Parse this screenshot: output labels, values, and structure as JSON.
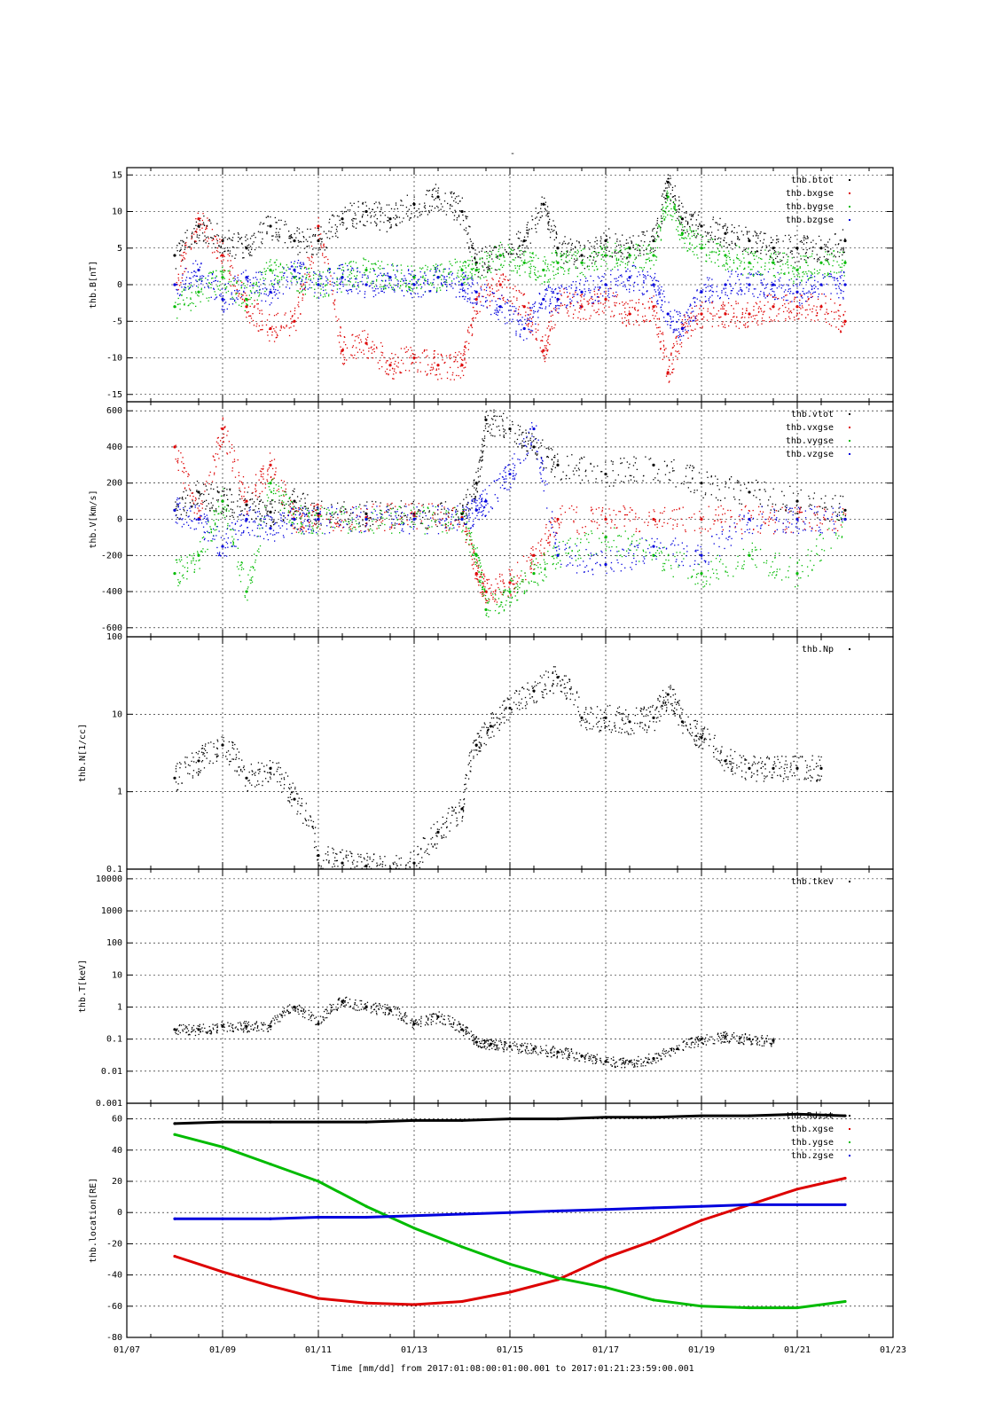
{
  "figure": {
    "title": "-",
    "xlabel": "Time [mm/dd]  from 2017:01:08:00:01:00.001  to  2017:01:21:23:59:00.001",
    "x_ticks": [
      "01/07",
      "01/09",
      "01/11",
      "01/13",
      "01/15",
      "01/17",
      "01/19",
      "01/21",
      "01/23"
    ]
  },
  "chart_data": [
    {
      "type": "scatter",
      "panel": "magnetic-field",
      "ylabel": "thb.B[nT]",
      "x_unit": "day of January 2017",
      "xlim": [
        7,
        23
      ],
      "ylim": [
        -16,
        16
      ],
      "y_ticks": [
        "15",
        "10",
        "5",
        "0",
        "-5",
        "-10",
        "-15"
      ],
      "y_tick_values": [
        15,
        10,
        5,
        0,
        -5,
        -10,
        -15
      ],
      "grid": true,
      "legend_position": "top-right",
      "series": [
        {
          "name": "thb.btot",
          "color": "#000000",
          "x": [
            8.0,
            8.5,
            9.0,
            9.5,
            10.0,
            10.5,
            11.0,
            11.5,
            12.0,
            12.5,
            13.0,
            13.5,
            14.0,
            14.3,
            14.8,
            15.3,
            15.7,
            16.0,
            16.5,
            17.0,
            17.5,
            18.0,
            18.3,
            18.6,
            19.0,
            19.5,
            20.0,
            20.5,
            21.0,
            21.5,
            22.0
          ],
          "y": [
            4,
            8,
            6,
            5,
            8,
            6,
            6,
            9,
            10,
            9,
            11,
            12,
            10,
            3,
            4,
            6,
            11,
            5,
            4,
            6,
            5,
            6,
            14,
            9,
            8,
            7,
            6,
            5,
            5,
            5,
            6
          ]
        },
        {
          "name": "thb.bxgse",
          "color": "#dd0000",
          "x": [
            8.0,
            8.5,
            9.0,
            9.5,
            10.0,
            10.5,
            11.0,
            11.5,
            12.0,
            12.5,
            13.0,
            13.5,
            14.0,
            14.3,
            14.8,
            15.3,
            15.7,
            16.0,
            16.5,
            17.0,
            17.5,
            18.0,
            18.3,
            18.6,
            19.0,
            19.5,
            20.0,
            20.5,
            21.0,
            21.5,
            22.0
          ],
          "y": [
            0,
            9,
            4,
            -3,
            -6,
            -5,
            8,
            -9,
            -8,
            -11,
            -10,
            -11,
            -11,
            -2,
            0,
            -3,
            -9,
            -2,
            -3,
            -2,
            -4,
            -3,
            -12,
            -6,
            -4,
            -4,
            -4,
            -3,
            -3,
            -3,
            -5
          ]
        },
        {
          "name": "thb.bygse",
          "color": "#00bb00",
          "x": [
            8.0,
            8.5,
            9.0,
            9.5,
            10.0,
            10.5,
            11.0,
            11.5,
            12.0,
            12.5,
            13.0,
            13.5,
            14.0,
            14.3,
            14.8,
            15.3,
            15.7,
            16.0,
            16.5,
            17.0,
            17.5,
            18.0,
            18.3,
            18.6,
            19.0,
            19.5,
            20.0,
            20.5,
            21.0,
            21.5,
            22.0
          ],
          "y": [
            -3,
            -1,
            1,
            -2,
            2,
            1,
            0,
            1,
            2,
            1,
            1,
            1,
            2,
            2,
            4,
            3,
            2,
            3,
            3,
            4,
            4,
            4,
            12,
            7,
            5,
            4,
            3,
            3,
            2,
            3,
            3
          ]
        },
        {
          "name": "thb.bzgse",
          "color": "#0000dd",
          "x": [
            8.0,
            8.5,
            9.0,
            9.5,
            10.0,
            10.5,
            11.0,
            11.5,
            12.0,
            12.5,
            13.0,
            13.5,
            14.0,
            14.3,
            14.8,
            15.3,
            15.7,
            16.0,
            16.5,
            17.0,
            17.5,
            18.0,
            18.3,
            18.6,
            19.0,
            19.5,
            20.0,
            20.5,
            21.0,
            21.5,
            22.0
          ],
          "y": [
            0,
            2,
            -2,
            1,
            -1,
            2,
            0,
            1,
            0,
            1,
            0,
            1,
            0,
            -1,
            -3,
            -6,
            -2,
            -2,
            -1,
            0,
            1,
            0,
            -4,
            -6,
            -1,
            0,
            0,
            0,
            -1,
            0,
            0
          ]
        }
      ]
    },
    {
      "type": "scatter",
      "panel": "velocity",
      "ylabel": "thb.V[km/s]",
      "xlim": [
        7,
        23
      ],
      "ylim": [
        -650,
        650
      ],
      "y_ticks": [
        "600",
        "400",
        "200",
        "0",
        "-200",
        "-400",
        "-600"
      ],
      "y_tick_values": [
        600,
        400,
        200,
        0,
        -200,
        -400,
        -600
      ],
      "grid": true,
      "legend_position": "top-right",
      "series": [
        {
          "name": "thb.vtot",
          "color": "#000000",
          "x": [
            8.0,
            8.5,
            9.0,
            9.5,
            10.0,
            10.5,
            11.0,
            12.0,
            13.0,
            14.0,
            14.3,
            14.5,
            15.0,
            15.5,
            16.0,
            17.0,
            18.0,
            19.0,
            20.0,
            21.0,
            22.0
          ],
          "y": [
            50,
            150,
            100,
            80,
            40,
            100,
            30,
            30,
            30,
            30,
            200,
            550,
            500,
            400,
            300,
            250,
            300,
            200,
            150,
            100,
            50
          ]
        },
        {
          "name": "thb.vxgse",
          "color": "#dd0000",
          "x": [
            8.0,
            8.5,
            9.0,
            9.5,
            10.0,
            10.5,
            11.0,
            12.0,
            13.0,
            14.0,
            14.3,
            14.5,
            15.0,
            15.5,
            16.0,
            17.0,
            18.0,
            19.0,
            20.0,
            21.0,
            22.0
          ],
          "y": [
            400,
            0,
            500,
            100,
            300,
            0,
            20,
            10,
            20,
            10,
            -300,
            -400,
            -350,
            -200,
            0,
            0,
            0,
            0,
            0,
            0,
            0
          ]
        },
        {
          "name": "thb.vygse",
          "color": "#00bb00",
          "x": [
            8.0,
            8.5,
            9.0,
            9.5,
            10.0,
            10.5,
            11.0,
            12.0,
            13.0,
            14.0,
            14.3,
            14.5,
            15.0,
            15.5,
            16.0,
            17.0,
            18.0,
            19.0,
            20.0,
            21.0,
            22.0
          ],
          "y": [
            -300,
            -200,
            100,
            -400,
            200,
            0,
            0,
            0,
            0,
            0,
            -200,
            -500,
            -400,
            -300,
            -200,
            -100,
            -200,
            -300,
            -200,
            -300,
            0
          ]
        },
        {
          "name": "thb.vzgse",
          "color": "#0000dd",
          "x": [
            8.0,
            8.5,
            9.0,
            9.5,
            10.0,
            10.5,
            11.0,
            12.0,
            13.0,
            14.0,
            14.3,
            14.5,
            15.0,
            15.5,
            16.0,
            17.0,
            18.0,
            19.0,
            20.0,
            21.0,
            22.0
          ],
          "y": [
            50,
            0,
            -150,
            0,
            -50,
            0,
            0,
            0,
            0,
            0,
            50,
            100,
            250,
            500,
            -200,
            -250,
            -150,
            -200,
            0,
            0,
            0
          ]
        }
      ]
    },
    {
      "type": "scatter",
      "panel": "density",
      "ylabel": "thb.N[1/cc]",
      "xlim": [
        7,
        23
      ],
      "ylim": [
        0.1,
        100
      ],
      "log_y": true,
      "y_ticks": [
        "100",
        "10",
        "1",
        "0.1"
      ],
      "y_tick_values": [
        100,
        10,
        1,
        0.1
      ],
      "grid": true,
      "legend_position": "top-right",
      "series": [
        {
          "name": "thb.Np",
          "color": "#000000",
          "x": [
            8.0,
            8.5,
            9.0,
            9.5,
            10.0,
            10.5,
            11.0,
            11.5,
            12.0,
            12.5,
            13.0,
            13.5,
            14.0,
            14.3,
            14.6,
            15.0,
            15.5,
            16.0,
            16.5,
            17.0,
            17.5,
            18.0,
            18.3,
            18.6,
            19.0,
            19.5,
            20.0,
            20.5,
            21.0,
            21.5
          ],
          "y": [
            1.5,
            2.5,
            4,
            1.5,
            2,
            0.8,
            0.15,
            0.12,
            0.11,
            0.1,
            0.12,
            0.3,
            0.6,
            4,
            7,
            12,
            20,
            30,
            9,
            9,
            8,
            9,
            18,
            8,
            5,
            2.5,
            2,
            2,
            2,
            2
          ]
        }
      ]
    },
    {
      "type": "scatter",
      "panel": "temperature",
      "ylabel": "thb.T[keV]",
      "xlim": [
        7,
        23
      ],
      "ylim": [
        0.001,
        20000
      ],
      "log_y": true,
      "y_ticks": [
        "10000",
        "1000",
        "100",
        "10",
        "1",
        "0.1",
        "0.01",
        "0.001"
      ],
      "y_tick_values": [
        10000,
        1000,
        100,
        10,
        1,
        0.1,
        0.01,
        0.001
      ],
      "grid": true,
      "legend_position": "top-right",
      "series": [
        {
          "name": "thb.tkev",
          "color": "#000000",
          "x": [
            8.0,
            8.5,
            9.0,
            9.5,
            10.0,
            10.5,
            11.0,
            11.5,
            12.0,
            12.5,
            13.0,
            13.5,
            14.0,
            14.3,
            14.6,
            15.0,
            15.5,
            16.0,
            16.5,
            17.0,
            17.5,
            18.0,
            18.5,
            19.0,
            19.5,
            20.0,
            20.5
          ],
          "y": [
            0.2,
            0.2,
            0.25,
            0.25,
            0.25,
            1,
            0.3,
            1.5,
            1,
            0.8,
            0.3,
            0.5,
            0.2,
            0.08,
            0.07,
            0.06,
            0.05,
            0.04,
            0.03,
            0.02,
            0.02,
            0.025,
            0.05,
            0.1,
            0.12,
            0.1,
            0.09
          ]
        }
      ]
    },
    {
      "type": "line",
      "panel": "location",
      "ylabel": "thb.location[RE]",
      "xlim": [
        7,
        23
      ],
      "ylim": [
        -80,
        70
      ],
      "y_ticks": [
        "60",
        "40",
        "20",
        "0",
        "-20",
        "-40",
        "-60",
        "-80"
      ],
      "y_tick_values": [
        60,
        40,
        20,
        0,
        -20,
        -40,
        -60,
        -80
      ],
      "grid": true,
      "legend_position": "top-right",
      "series": [
        {
          "name": "thb.Rdist",
          "color": "#000000",
          "x": [
            8,
            9,
            10,
            11,
            12,
            13,
            14,
            15,
            16,
            17,
            18,
            19,
            20,
            21,
            22
          ],
          "y": [
            57,
            58,
            58,
            58,
            58,
            59,
            59,
            60,
            60,
            61,
            61,
            62,
            62,
            63,
            62
          ]
        },
        {
          "name": "thb.xgse",
          "color": "#dd0000",
          "x": [
            8,
            9,
            10,
            11,
            12,
            13,
            14,
            15,
            16,
            17,
            18,
            19,
            20,
            21,
            22
          ],
          "y": [
            -28,
            -38,
            -47,
            -55,
            -58,
            -59,
            -57,
            -51,
            -43,
            -29,
            -18,
            -5,
            5,
            15,
            22
          ]
        },
        {
          "name": "thb.ygse",
          "color": "#00bb00",
          "x": [
            8,
            9,
            10,
            11,
            12,
            13,
            14,
            15,
            16,
            17,
            18,
            19,
            20,
            21,
            22
          ],
          "y": [
            50,
            42,
            31,
            20,
            4,
            -10,
            -22,
            -33,
            -42,
            -48,
            -56,
            -60,
            -61,
            -61,
            -57
          ]
        },
        {
          "name": "thb.zgse",
          "color": "#0000dd",
          "x": [
            8,
            9,
            10,
            11,
            12,
            13,
            14,
            15,
            16,
            17,
            18,
            19,
            20,
            21,
            22
          ],
          "y": [
            -4,
            -4,
            -4,
            -3,
            -3,
            -2,
            -1,
            0,
            1,
            2,
            3,
            4,
            5,
            5,
            5
          ]
        }
      ]
    }
  ]
}
